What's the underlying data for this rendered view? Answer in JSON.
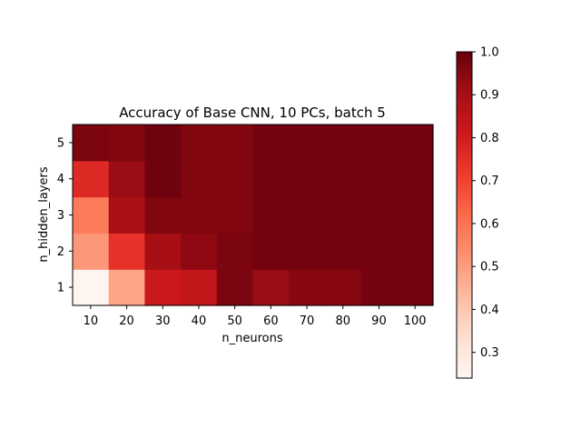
{
  "chart_data": {
    "type": "heatmap",
    "title": "Accuracy of Base CNN, 10 PCs, batch 5",
    "xlabel": "n_neurons",
    "ylabel": "n_hidden_layers",
    "x_categories": [
      "10",
      "20",
      "30",
      "40",
      "50",
      "60",
      "70",
      "80",
      "90",
      "100"
    ],
    "y_categories": [
      "1",
      "2",
      "3",
      "4",
      "5"
    ],
    "values": [
      [
        0.24,
        0.48,
        0.81,
        0.83,
        0.97,
        0.92,
        0.95,
        0.95,
        0.98,
        0.98
      ],
      [
        0.51,
        0.74,
        0.9,
        0.94,
        0.97,
        0.98,
        0.98,
        0.98,
        0.98,
        0.98
      ],
      [
        0.58,
        0.89,
        0.96,
        0.96,
        0.96,
        0.98,
        0.98,
        0.98,
        0.98,
        0.98
      ],
      [
        0.76,
        0.92,
        0.99,
        0.96,
        0.96,
        0.98,
        0.98,
        0.98,
        0.98,
        0.98
      ],
      [
        0.97,
        0.96,
        0.99,
        0.96,
        0.96,
        0.98,
        0.98,
        0.98,
        0.98,
        0.98
      ]
    ],
    "colorbar": {
      "min": 0.24,
      "max": 1.0,
      "ticks": [
        "0.3",
        "0.4",
        "0.5",
        "0.6",
        "0.7",
        "0.8",
        "0.9",
        "1.0"
      ],
      "colormap": "Reds"
    }
  }
}
